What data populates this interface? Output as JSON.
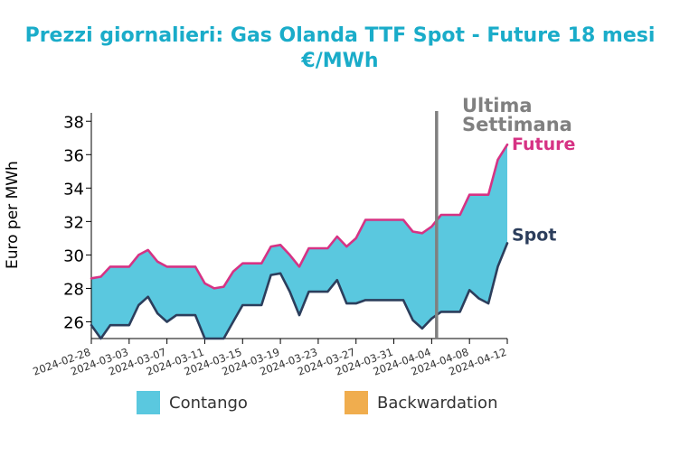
{
  "title_line1": "Prezzi giornalieri: Gas Olanda TTF Spot - Future 18 mesi",
  "title_line2": "€/MWh",
  "chart_data": {
    "type": "area",
    "ylabel": "Euro per MWh",
    "ylim": [
      25,
      38.5
    ],
    "yticks": [
      26,
      28,
      30,
      32,
      34,
      36,
      38
    ],
    "x": [
      "2024-02-28",
      "2024-02-29",
      "2024-03-01",
      "2024-03-02",
      "2024-03-03",
      "2024-03-04",
      "2024-03-05",
      "2024-03-06",
      "2024-03-07",
      "2024-03-08",
      "2024-03-09",
      "2024-03-10",
      "2024-03-11",
      "2024-03-12",
      "2024-03-13",
      "2024-03-14",
      "2024-03-15",
      "2024-03-16",
      "2024-03-17",
      "2024-03-18",
      "2024-03-19",
      "2024-03-20",
      "2024-03-21",
      "2024-03-22",
      "2024-03-23",
      "2024-03-24",
      "2024-03-25",
      "2024-03-26",
      "2024-03-27",
      "2024-03-28",
      "2024-03-29",
      "2024-03-30",
      "2024-03-31",
      "2024-04-01",
      "2024-04-02",
      "2024-04-03",
      "2024-04-04",
      "2024-04-05",
      "2024-04-06",
      "2024-04-07",
      "2024-04-08",
      "2024-04-09",
      "2024-04-10",
      "2024-04-11",
      "2024-04-12"
    ],
    "xticks": [
      "2024-02-28",
      "2024-03-03",
      "2024-03-07",
      "2024-03-11",
      "2024-03-15",
      "2024-03-19",
      "2024-03-23",
      "2024-03-27",
      "2024-03-31",
      "2024-04-04",
      "2024-04-08",
      "2024-04-12"
    ],
    "series": [
      {
        "name": "Future",
        "color": "#d63384",
        "values": [
          28.6,
          28.7,
          29.3,
          29.3,
          29.3,
          30.0,
          30.3,
          29.6,
          29.3,
          29.3,
          29.3,
          29.3,
          28.3,
          28.0,
          28.1,
          29.0,
          29.5,
          29.5,
          29.5,
          30.5,
          30.6,
          30.0,
          29.3,
          30.4,
          30.4,
          30.4,
          31.1,
          30.5,
          31.0,
          32.1,
          32.1,
          32.1,
          32.1,
          32.1,
          31.4,
          31.3,
          31.7,
          32.4,
          32.4,
          32.4,
          33.6,
          33.6,
          33.6,
          35.7,
          36.6
        ]
      },
      {
        "name": "Spot",
        "color": "#2c3e5c",
        "values": [
          25.8,
          25.0,
          25.8,
          25.8,
          25.8,
          27.0,
          27.5,
          26.5,
          26.0,
          26.4,
          26.4,
          26.4,
          25.0,
          25.0,
          25.0,
          26.0,
          27.0,
          27.0,
          27.0,
          28.8,
          28.9,
          27.8,
          26.4,
          27.8,
          27.8,
          27.8,
          28.5,
          27.1,
          27.1,
          27.3,
          27.3,
          27.3,
          27.3,
          27.3,
          26.1,
          25.6,
          26.2,
          26.6,
          26.6,
          26.6,
          27.9,
          27.4,
          27.1,
          29.3,
          30.7
        ]
      }
    ],
    "marker": {
      "label_line1": "Ultima",
      "label_line2": "Settimana",
      "x": "2024-04-05",
      "color": "#808080"
    },
    "fill_colors": {
      "contango": "#5ac8df",
      "backwardation": "#f0ad4e"
    },
    "legend": [
      {
        "label": "Contango",
        "color": "#5ac8df"
      },
      {
        "label": "Backwardation",
        "color": "#f0ad4e"
      }
    ]
  }
}
